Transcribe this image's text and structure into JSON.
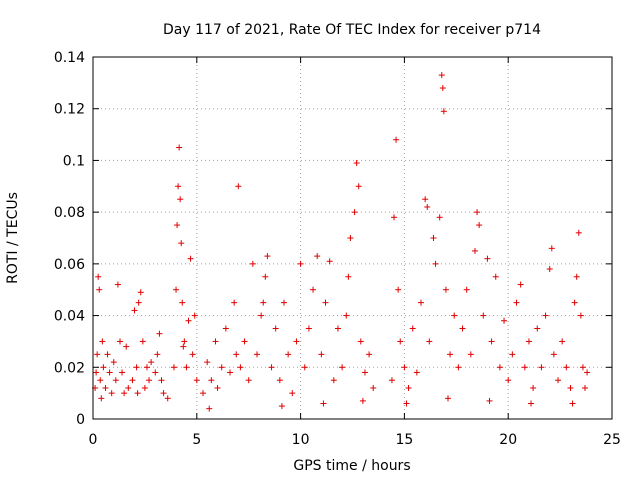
{
  "chart_data": {
    "type": "scatter",
    "title": "Day 117 of 2021, Rate Of TEC Index for receiver p714",
    "xlabel": "GPS time / hours",
    "ylabel": "ROTI / TECUs",
    "xlim": [
      0,
      25
    ],
    "ylim": [
      0,
      0.14
    ],
    "xticks": [
      "0",
      "5",
      "10",
      "15",
      "20",
      "25"
    ],
    "yticks": [
      "0",
      "0.02",
      "0.04",
      "0.06",
      "0.08",
      "0.1",
      "0.12",
      "0.14"
    ],
    "grid": true,
    "marker": "+",
    "color": "#e00000",
    "series": [
      {
        "points": [
          [
            0.1,
            0.012
          ],
          [
            0.15,
            0.018
          ],
          [
            0.2,
            0.025
          ],
          [
            0.25,
            0.055
          ],
          [
            0.3,
            0.05
          ],
          [
            0.35,
            0.015
          ],
          [
            0.4,
            0.008
          ],
          [
            0.5,
            0.02
          ],
          [
            0.6,
            0.012
          ],
          [
            0.7,
            0.025
          ],
          [
            0.8,
            0.018
          ],
          [
            0.9,
            0.01
          ],
          [
            1.0,
            0.022
          ],
          [
            1.1,
            0.015
          ],
          [
            1.2,
            0.052
          ],
          [
            1.3,
            0.03
          ],
          [
            1.4,
            0.018
          ],
          [
            1.5,
            0.01
          ],
          [
            1.6,
            0.028
          ],
          [
            1.7,
            0.012
          ],
          [
            1.9,
            0.015
          ],
          [
            2.0,
            0.042
          ],
          [
            2.1,
            0.02
          ],
          [
            2.2,
            0.045
          ],
          [
            2.3,
            0.049
          ],
          [
            2.4,
            0.03
          ],
          [
            2.5,
            0.012
          ],
          [
            2.6,
            0.02
          ],
          [
            2.7,
            0.015
          ],
          [
            2.8,
            0.022
          ],
          [
            3.0,
            0.018
          ],
          [
            3.1,
            0.025
          ],
          [
            3.2,
            0.033
          ],
          [
            3.3,
            0.015
          ],
          [
            3.4,
            0.01
          ],
          [
            3.9,
            0.02
          ],
          [
            4.0,
            0.05
          ],
          [
            4.05,
            0.075
          ],
          [
            4.1,
            0.09
          ],
          [
            4.15,
            0.105
          ],
          [
            4.2,
            0.085
          ],
          [
            4.25,
            0.068
          ],
          [
            4.3,
            0.045
          ],
          [
            4.4,
            0.03
          ],
          [
            4.5,
            0.02
          ],
          [
            4.6,
            0.038
          ],
          [
            4.7,
            0.062
          ],
          [
            4.8,
            0.025
          ],
          [
            4.9,
            0.04
          ],
          [
            5.0,
            0.015
          ],
          [
            5.3,
            0.01
          ],
          [
            5.5,
            0.022
          ],
          [
            5.7,
            0.015
          ],
          [
            5.9,
            0.03
          ],
          [
            6.0,
            0.012
          ],
          [
            6.2,
            0.02
          ],
          [
            6.4,
            0.035
          ],
          [
            6.6,
            0.018
          ],
          [
            6.8,
            0.045
          ],
          [
            6.9,
            0.025
          ],
          [
            7.0,
            0.09
          ],
          [
            7.1,
            0.02
          ],
          [
            7.3,
            0.03
          ],
          [
            7.5,
            0.015
          ],
          [
            7.7,
            0.06
          ],
          [
            7.9,
            0.025
          ],
          [
            8.1,
            0.04
          ],
          [
            8.3,
            0.055
          ],
          [
            8.4,
            0.063
          ],
          [
            8.6,
            0.02
          ],
          [
            8.8,
            0.035
          ],
          [
            9.0,
            0.015
          ],
          [
            9.2,
            0.045
          ],
          [
            9.4,
            0.025
          ],
          [
            9.6,
            0.01
          ],
          [
            9.8,
            0.03
          ],
          [
            10.0,
            0.06
          ],
          [
            10.2,
            0.02
          ],
          [
            10.4,
            0.035
          ],
          [
            10.6,
            0.05
          ],
          [
            10.8,
            0.063
          ],
          [
            11.0,
            0.025
          ],
          [
            11.2,
            0.045
          ],
          [
            11.4,
            0.061
          ],
          [
            11.6,
            0.015
          ],
          [
            11.8,
            0.035
          ],
          [
            12.0,
            0.02
          ],
          [
            12.2,
            0.04
          ],
          [
            12.4,
            0.07
          ],
          [
            12.6,
            0.08
          ],
          [
            12.7,
            0.099
          ],
          [
            12.8,
            0.09
          ],
          [
            12.9,
            0.03
          ],
          [
            13.1,
            0.018
          ],
          [
            13.3,
            0.025
          ],
          [
            13.5,
            0.012
          ],
          [
            14.4,
            0.015
          ],
          [
            14.5,
            0.078
          ],
          [
            14.6,
            0.108
          ],
          [
            14.7,
            0.05
          ],
          [
            14.8,
            0.03
          ],
          [
            15.0,
            0.02
          ],
          [
            15.2,
            0.012
          ],
          [
            15.4,
            0.035
          ],
          [
            15.6,
            0.018
          ],
          [
            15.8,
            0.045
          ],
          [
            16.0,
            0.085
          ],
          [
            16.1,
            0.082
          ],
          [
            16.2,
            0.03
          ],
          [
            16.4,
            0.07
          ],
          [
            16.5,
            0.06
          ],
          [
            16.7,
            0.078
          ],
          [
            16.8,
            0.133
          ],
          [
            16.85,
            0.128
          ],
          [
            16.9,
            0.119
          ],
          [
            17.0,
            0.05
          ],
          [
            17.2,
            0.025
          ],
          [
            17.4,
            0.04
          ],
          [
            17.6,
            0.02
          ],
          [
            17.8,
            0.035
          ],
          [
            18.0,
            0.05
          ],
          [
            18.2,
            0.025
          ],
          [
            18.4,
            0.065
          ],
          [
            18.5,
            0.08
          ],
          [
            18.6,
            0.075
          ],
          [
            18.8,
            0.04
          ],
          [
            19.0,
            0.062
          ],
          [
            19.2,
            0.03
          ],
          [
            19.4,
            0.055
          ],
          [
            19.6,
            0.02
          ],
          [
            19.8,
            0.038
          ],
          [
            20.0,
            0.015
          ],
          [
            20.2,
            0.025
          ],
          [
            20.4,
            0.045
          ],
          [
            20.6,
            0.052
          ],
          [
            20.8,
            0.02
          ],
          [
            21.0,
            0.03
          ],
          [
            21.2,
            0.012
          ],
          [
            21.4,
            0.035
          ],
          [
            21.6,
            0.02
          ],
          [
            21.8,
            0.04
          ],
          [
            22.0,
            0.058
          ],
          [
            22.1,
            0.066
          ],
          [
            22.2,
            0.025
          ],
          [
            22.4,
            0.015
          ],
          [
            22.6,
            0.03
          ],
          [
            22.8,
            0.02
          ],
          [
            23.0,
            0.012
          ],
          [
            23.2,
            0.045
          ],
          [
            23.3,
            0.055
          ],
          [
            23.4,
            0.072
          ],
          [
            23.5,
            0.04
          ],
          [
            23.6,
            0.02
          ],
          [
            23.7,
            0.012
          ],
          [
            23.8,
            0.018
          ],
          [
            0.45,
            0.03
          ],
          [
            2.15,
            0.01
          ],
          [
            3.6,
            0.008
          ],
          [
            5.6,
            0.004
          ],
          [
            9.1,
            0.005
          ],
          [
            11.1,
            0.006
          ],
          [
            13.0,
            0.007
          ],
          [
            15.1,
            0.006
          ],
          [
            17.1,
            0.008
          ],
          [
            19.1,
            0.007
          ],
          [
            21.1,
            0.006
          ],
          [
            23.1,
            0.006
          ],
          [
            4.35,
            0.028
          ],
          [
            8.2,
            0.045
          ],
          [
            12.3,
            0.055
          ]
        ]
      }
    ]
  }
}
